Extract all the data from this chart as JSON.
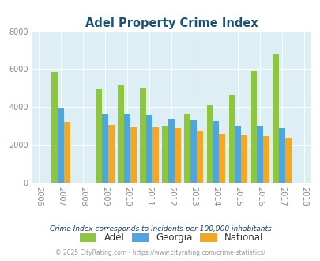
{
  "title": "Adel Property Crime Index",
  "years": [
    2006,
    2007,
    2008,
    2009,
    2010,
    2011,
    2012,
    2013,
    2014,
    2015,
    2016,
    2017,
    2018
  ],
  "adel": [
    null,
    5850,
    null,
    4980,
    5150,
    5020,
    3020,
    3620,
    4080,
    4620,
    5900,
    6800,
    null
  ],
  "georgia": [
    null,
    3920,
    null,
    3620,
    3620,
    3600,
    3380,
    3290,
    3260,
    3020,
    3000,
    2900,
    null
  ],
  "national": [
    null,
    3200,
    null,
    3040,
    2960,
    2940,
    2900,
    2740,
    2590,
    2500,
    2480,
    2380,
    null
  ],
  "adel_color": "#8dc63f",
  "georgia_color": "#4da6e0",
  "national_color": "#f5a623",
  "bg_color": "#ddeef5",
  "ylim": [
    0,
    8000
  ],
  "yticks": [
    0,
    2000,
    4000,
    6000,
    8000
  ],
  "legend_labels": [
    "Adel",
    "Georgia",
    "National"
  ],
  "footnote1": "Crime Index corresponds to incidents per 100,000 inhabitants",
  "footnote2": "© 2025 CityRating.com - https://www.cityrating.com/crime-statistics/"
}
